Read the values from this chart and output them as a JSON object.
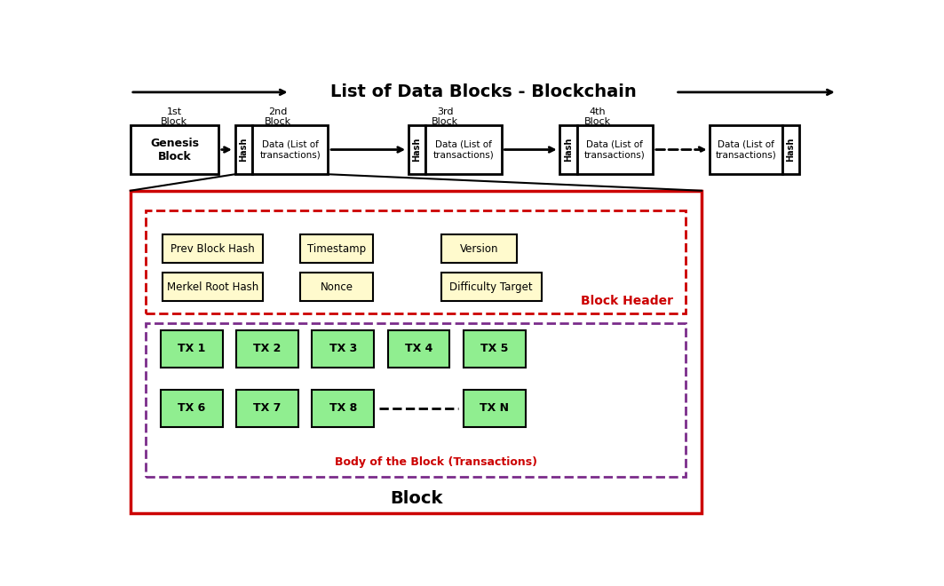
{
  "title": "List of Data Blocks - Blockchain",
  "background_color": "#ffffff",
  "genesis_text": "Genesis\nBlock",
  "hash_text": "Hash",
  "data_text": "Data (List of\ntransactions)",
  "header_items_row1": [
    "Prev Block Hash",
    "Timestamp",
    "Version"
  ],
  "header_items_row2": [
    "Merkel Root Hash",
    "Nonce",
    "Difficulty Target"
  ],
  "block_header_label": "Block Header",
  "body_label": "Body of the Block (Transactions)",
  "block_label": "Block",
  "tx_row1": [
    "TX 1",
    "TX 2",
    "TX 3",
    "TX 4",
    "TX 5"
  ],
  "tx_row2": [
    "TX 6",
    "TX 7",
    "TX 8",
    "TX N"
  ],
  "header_box_color": "#fffacd",
  "tx_box_color": "#90ee90",
  "outer_block_ec": "#cc0000",
  "header_section_ec": "#cc0000",
  "body_section_ec": "#7b2d8b",
  "body_label_color": "#cc0000",
  "header_label_color": "#cc0000"
}
